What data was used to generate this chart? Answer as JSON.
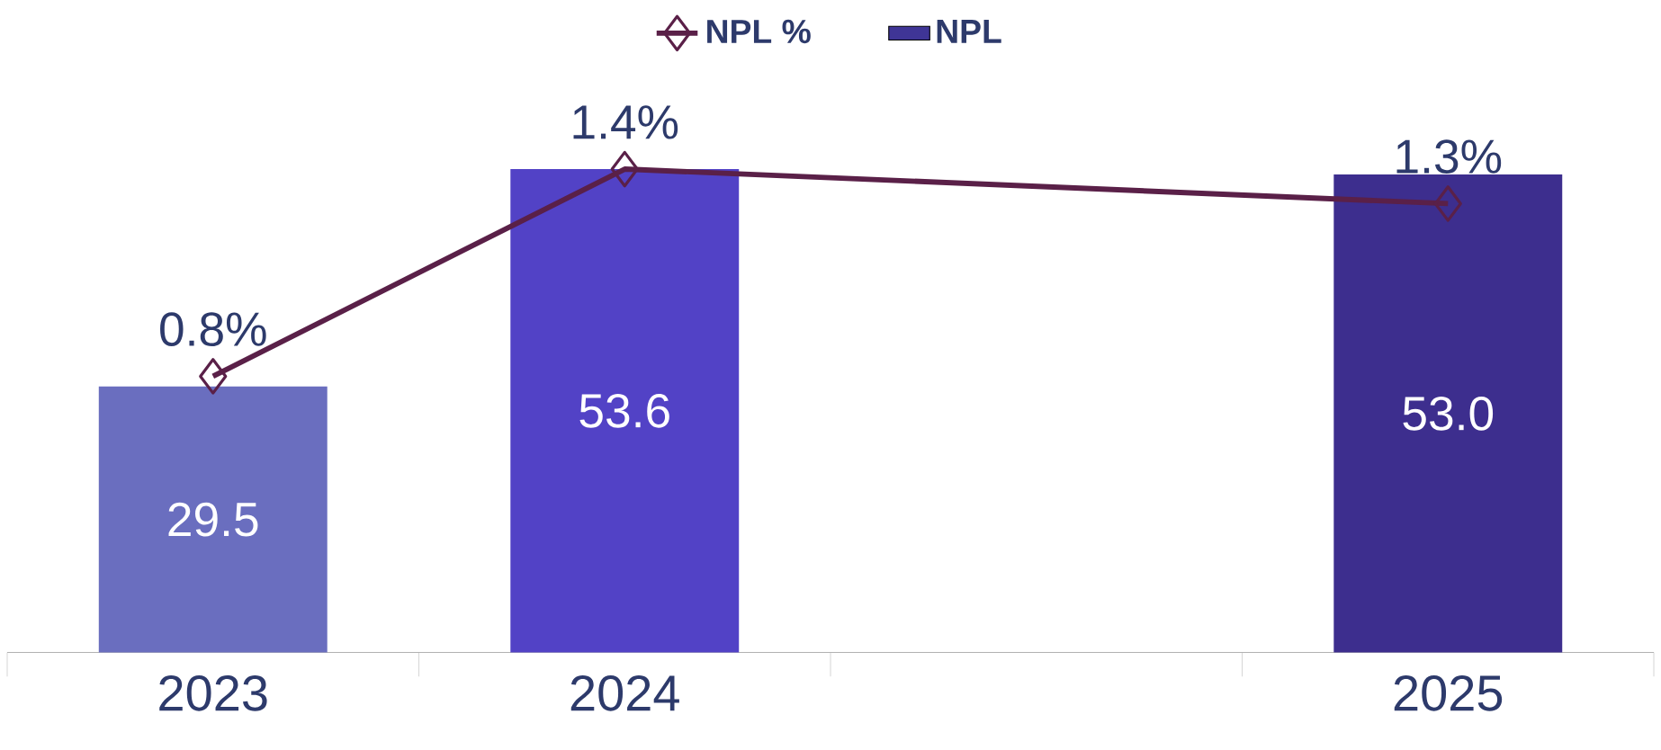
{
  "chart_data": {
    "type": "bar",
    "categories": [
      "2023",
      "2024",
      null,
      "2025"
    ],
    "series": [
      {
        "name": "NPL %",
        "type": "line",
        "axis": "y2",
        "color": "#5a2048",
        "marker": "diamond",
        "values": [
          0.8,
          1.4,
          null,
          1.3
        ],
        "value_labels": [
          "0.8%",
          "1.4%",
          null,
          "1.3%"
        ]
      },
      {
        "name": "NPL",
        "color": "#3f3596",
        "colors": [
          "#6a6ebf",
          "#5242c6",
          null,
          "#3d2e8e"
        ],
        "values": [
          29.5,
          53.6,
          null,
          53.0
        ],
        "value_labels": [
          "29.5",
          "53.6",
          null,
          "53.0"
        ]
      }
    ],
    "legend": "top",
    "grid": false
  }
}
